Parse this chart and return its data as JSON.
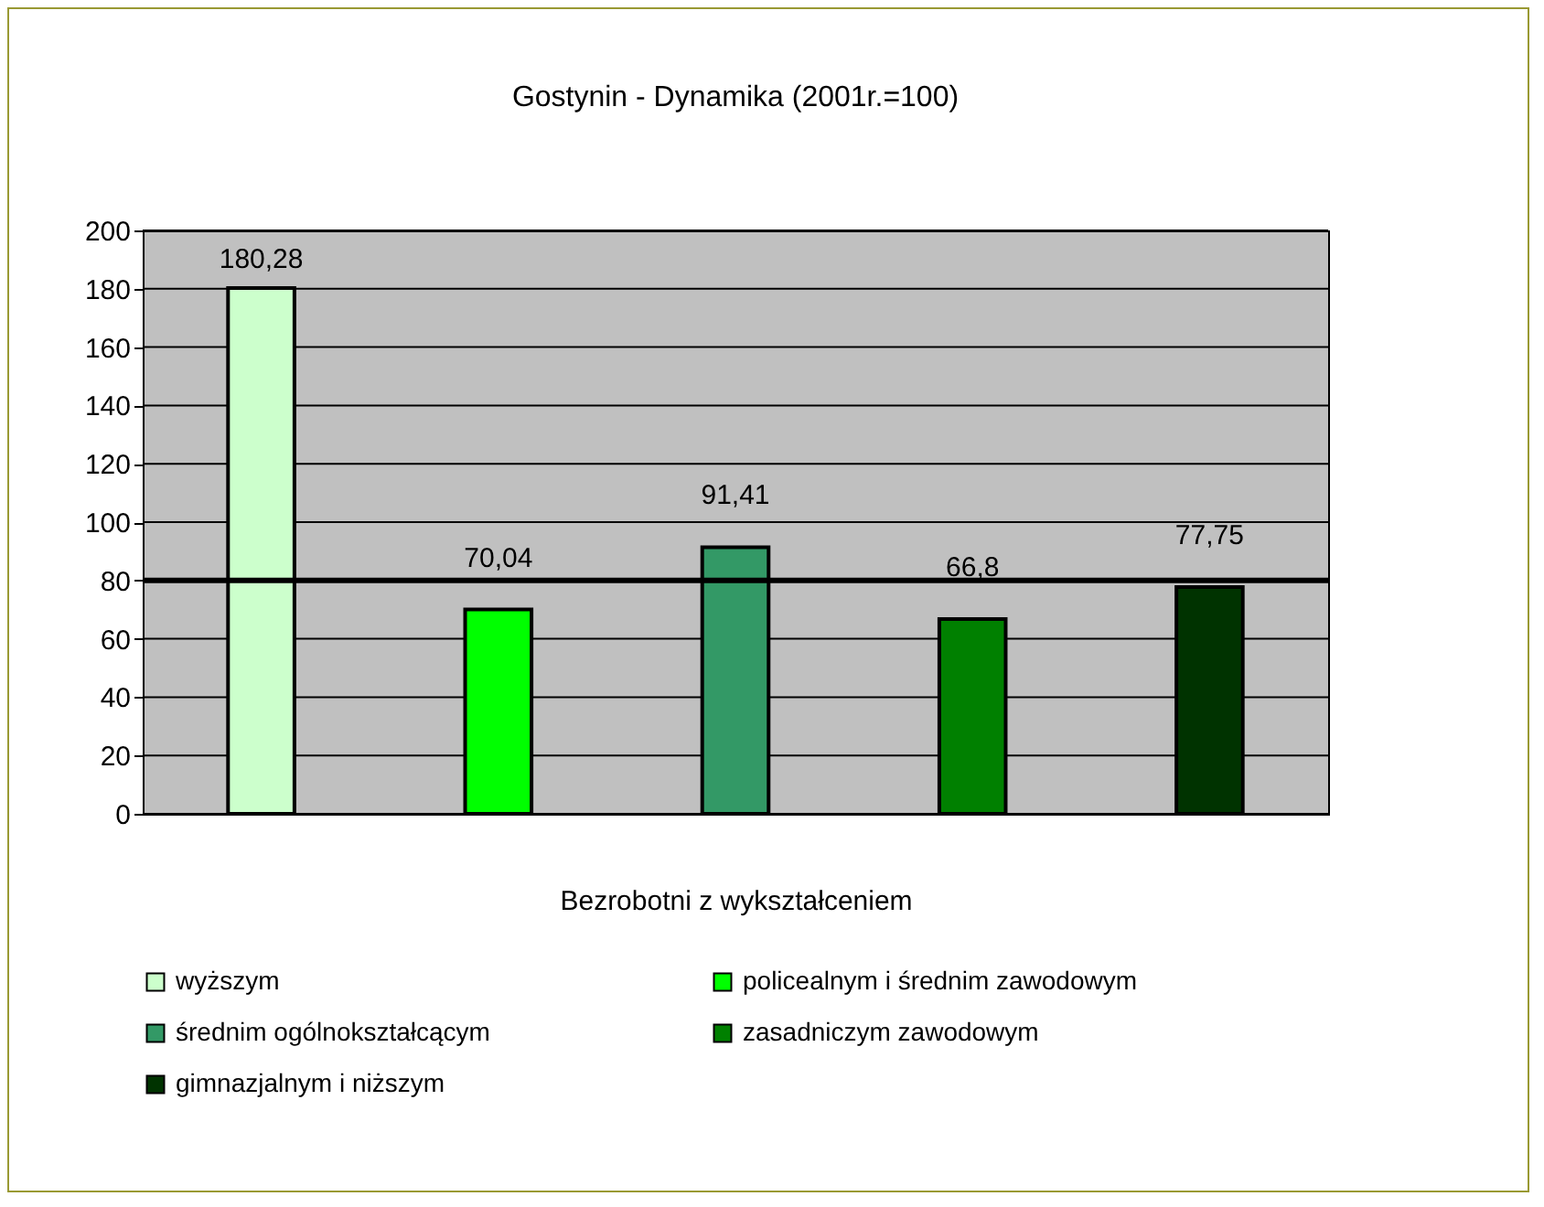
{
  "chart_data": {
    "type": "bar",
    "title": "Gostynin - Dynamika (2001r.=100)",
    "xlabel": "Bezrobotni z wykształceniem",
    "categories": [
      null
    ],
    "series": [
      {
        "name": "wyższym",
        "color": "#ccffcc",
        "values": [
          180.28
        ],
        "value_labels": [
          "180,28"
        ]
      },
      {
        "name": "policealnym i średnim zawodowym",
        "color": "#00ff00",
        "values": [
          70.04
        ],
        "value_labels": [
          "70,04"
        ]
      },
      {
        "name": "średnim ogólnokształcącym",
        "color": "#339966",
        "values": [
          91.41
        ],
        "value_labels": [
          "91,41"
        ]
      },
      {
        "name": "zasadniczym zawodowym",
        "color": "#008000",
        "values": [
          66.8
        ],
        "value_labels": [
          "66,8"
        ]
      },
      {
        "name": "gimnazjalnym i niższym",
        "color": "#003300",
        "values": [
          77.75
        ],
        "value_labels": [
          "77,75"
        ]
      }
    ],
    "ylim": [
      0,
      200
    ],
    "yticks": [
      0,
      20,
      40,
      60,
      80,
      100,
      120,
      140,
      160,
      180,
      200
    ],
    "grid": "y",
    "legend": "bottom",
    "ref_lines": [
      {
        "axis": "y",
        "value": 80
      }
    ]
  }
}
